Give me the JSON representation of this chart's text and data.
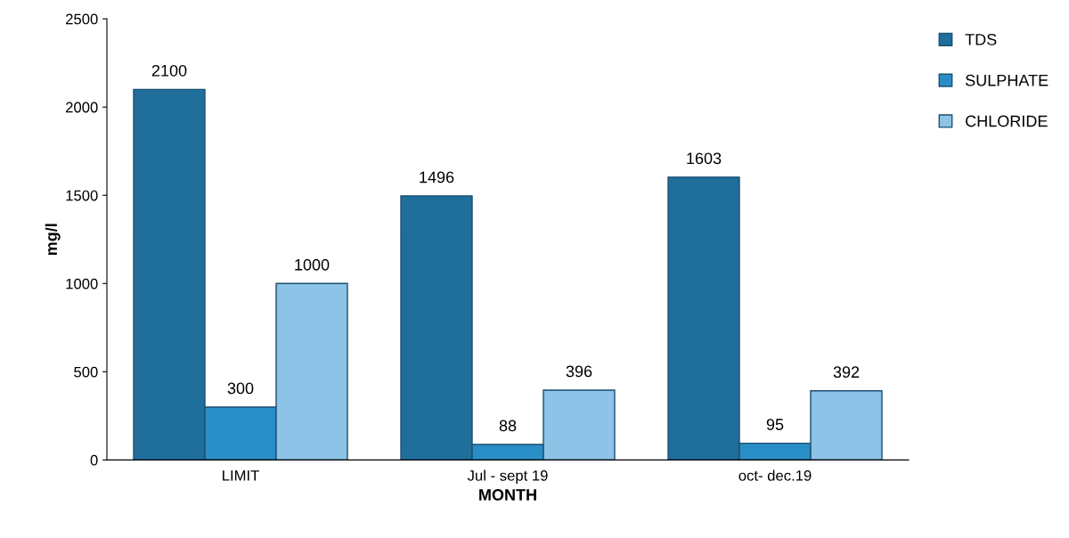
{
  "chart_data": {
    "type": "bar",
    "xlabel": "MONTH",
    "ylabel": "mg/l",
    "categories": [
      "LIMIT",
      "Jul - sept 19",
      "oct- dec.19"
    ],
    "series": [
      {
        "name": "TDS",
        "color": "#1f6e9c",
        "values": [
          2100,
          1496,
          1603
        ]
      },
      {
        "name": "SULPHATE",
        "color": "#2a8ec6",
        "values": [
          300,
          88,
          95
        ]
      },
      {
        "name": "CHLORIDE",
        "color": "#8cc3e6",
        "values": [
          1000,
          396,
          392
        ]
      }
    ],
    "ylim": [
      0,
      2500
    ],
    "yticks": [
      0,
      500,
      1000,
      1500,
      2000,
      2500
    ],
    "data_labels": true,
    "grid": false,
    "legend": "top right"
  }
}
